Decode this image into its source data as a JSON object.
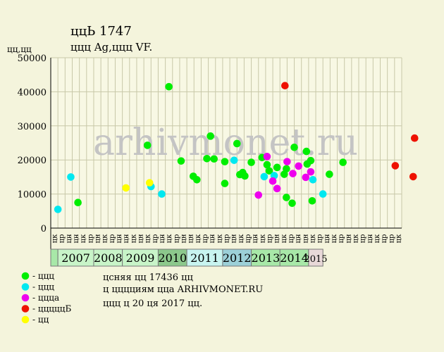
{
  "title": "ццЬ 1747",
  "subtitle": "ццц Ag,ццц VF.",
  "y_unit_label": "цц,цц",
  "watermark": "arhivmonet.ru",
  "footer_lines": [
    "цcняя цц 17436 цц",
    "ц цццциям ццa ARHIVMONET.RU",
    "ццц ц 20 ця 2017 цц."
  ],
  "colors": {
    "background": "#f4f4dc",
    "plot_background": "#f8f8e4",
    "grid": "#c8c8a8",
    "series_green": "#00ee00",
    "series_cyan": "#00e8f0",
    "series_magenta": "#ee00ee",
    "series_red": "#ee1100",
    "series_yellow": "#ffff00"
  },
  "chart_data": {
    "type": "scatter",
    "ylim": [
      0,
      50000
    ],
    "yticks": [
      0,
      10000,
      20000,
      30000,
      40000,
      50000
    ],
    "x_slots": [
      "цк",
      "цр",
      "цн",
      "цн",
      "цк",
      "цр",
      "цн",
      "цк",
      "цр",
      "цн",
      "цн",
      "цк",
      "цн",
      "цк",
      "цр",
      "цн",
      "цк",
      "цр",
      "цн",
      "цн",
      "цк",
      "цр",
      "цн",
      "цк",
      "цр",
      "цн",
      "цк",
      "цр",
      "цн",
      "цк",
      "цр",
      "цн",
      "цк",
      "цр",
      "цн",
      "цн",
      "цк",
      "цр",
      "цн",
      "цк",
      "цр",
      "цн",
      "цк",
      "цр",
      "цн",
      "цк",
      "цр",
      "цр",
      "цк"
    ],
    "year_bands": [
      {
        "label": "",
        "slots": 1,
        "color": "#a8e8a8"
      },
      {
        "label": "2007",
        "slots": 5,
        "color": "#c8f4c8"
      },
      {
        "label": "2008",
        "slots": 4,
        "color": "#c8f4c8"
      },
      {
        "label": "2009",
        "slots": 5,
        "color": "#c8f4c8"
      },
      {
        "label": "2010",
        "slots": 4,
        "color": "#8cc88c"
      },
      {
        "label": "2011",
        "slots": 5,
        "color": "#c8f4f0"
      },
      {
        "label": "2012",
        "slots": 4,
        "color": "#9cd0d8"
      },
      {
        "label": "2013",
        "slots": 4,
        "color": "#a8e8a8"
      },
      {
        "label": "2014",
        "slots": 4,
        "color": "#a8e8a8"
      },
      {
        "label": "2015",
        "slots": 2,
        "color": "#e8d8d8"
      }
    ],
    "legend": [
      {
        "label": "- ццц",
        "color": "#00ee00"
      },
      {
        "label": "- ццц",
        "color": "#00e8f0"
      },
      {
        "label": "- ццца",
        "color": "#ee00ee"
      },
      {
        "label": "- цццццБ",
        "color": "#ee1100"
      },
      {
        "label": "- цц",
        "color": "#ffff00"
      }
    ],
    "series": [
      {
        "color": "#00ee00",
        "points": [
          [
            3.8,
            7500
          ],
          [
            13.5,
            24300
          ],
          [
            16.5,
            41500
          ],
          [
            18.2,
            19700
          ],
          [
            19.9,
            15200
          ],
          [
            20.4,
            14200
          ],
          [
            21.8,
            20400
          ],
          [
            22.3,
            27000
          ],
          [
            22.8,
            20300
          ],
          [
            24.3,
            19500
          ],
          [
            24.3,
            13100
          ],
          [
            26.0,
            24800
          ],
          [
            26.4,
            15700
          ],
          [
            26.8,
            16300
          ],
          [
            27.1,
            15300
          ],
          [
            28.0,
            19300
          ],
          [
            29.5,
            20700
          ],
          [
            30.2,
            18600
          ],
          [
            30.5,
            16800
          ],
          [
            31.6,
            17800
          ],
          [
            32.6,
            15800
          ],
          [
            32.9,
            17400
          ],
          [
            33.7,
            7300
          ],
          [
            34.0,
            23700
          ],
          [
            32.9,
            9000
          ],
          [
            35.7,
            22500
          ],
          [
            35.8,
            18800
          ],
          [
            36.3,
            19800
          ],
          [
            36.5,
            8000
          ],
          [
            38.9,
            15800
          ],
          [
            40.8,
            19300
          ]
        ]
      },
      {
        "color": "#00e8f0",
        "points": [
          [
            1.0,
            5500
          ],
          [
            2.8,
            15000
          ],
          [
            14.0,
            12200
          ],
          [
            15.5,
            10000
          ],
          [
            25.6,
            19900
          ],
          [
            29.8,
            15100
          ],
          [
            31.2,
            15400
          ],
          [
            36.6,
            14200
          ],
          [
            38.0,
            10000
          ]
        ]
      },
      {
        "color": "#ee00ee",
        "points": [
          [
            29.0,
            9700
          ],
          [
            30.2,
            21000
          ],
          [
            31.0,
            13800
          ],
          [
            31.6,
            11600
          ],
          [
            33.0,
            19500
          ],
          [
            33.8,
            16000
          ],
          [
            34.6,
            18200
          ],
          [
            35.6,
            14900
          ],
          [
            36.3,
            16500
          ]
        ]
      },
      {
        "color": "#ee1100",
        "points": [
          [
            32.7,
            41800
          ],
          [
            48.1,
            18300
          ],
          [
            50.6,
            15100
          ],
          [
            50.8,
            26400
          ]
        ]
      },
      {
        "color": "#ffff00",
        "points": [
          [
            10.5,
            11800
          ],
          [
            13.8,
            13300
          ]
        ]
      }
    ]
  }
}
